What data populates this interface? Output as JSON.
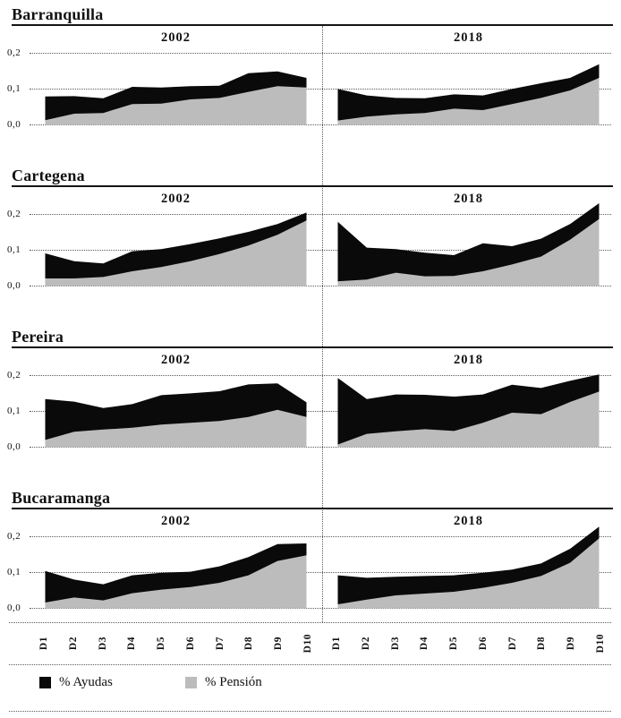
{
  "colors": {
    "ayudas": "#0a0a0a",
    "pension": "#bcbcbc",
    "rule": "#141414",
    "dotted_lines": "#5a5a5a",
    "background": "#ffffff"
  },
  "y_axis": {
    "ticks": [
      "0,2",
      "0,1",
      "0,0"
    ]
  },
  "x_axis": {
    "labels": [
      "D1",
      "D2",
      "D3",
      "D4",
      "D5",
      "D6",
      "D7",
      "D8",
      "D9",
      "D10"
    ]
  },
  "legend": [
    {
      "label": "% Ayudas",
      "color_key": "ayudas"
    },
    {
      "label": "% Pensión",
      "color_key": "pension"
    }
  ],
  "cities": [
    {
      "name": "Barranquilla",
      "panels": [
        "2002",
        "2018"
      ]
    },
    {
      "name": "Cartegena",
      "panels": [
        "2002",
        "2018"
      ]
    },
    {
      "name": "Pereira",
      "panels": [
        "2002",
        "2018"
      ]
    },
    {
      "name": "Bucaramanga",
      "panels": [
        "2002",
        "2018"
      ]
    }
  ],
  "chart_data": [
    {
      "type": "area",
      "stacked": true,
      "city": "Barranquilla",
      "panel_title": "2002",
      "x": [
        "D1",
        "D2",
        "D3",
        "D4",
        "D5",
        "D6",
        "D7",
        "D8",
        "D9",
        "D10"
      ],
      "series": [
        {
          "name": "% Pensión",
          "values": [
            0.012,
            0.03,
            0.032,
            0.057,
            0.058,
            0.07,
            0.074,
            0.091,
            0.107,
            0.103
          ]
        },
        {
          "name": "% Ayudas",
          "values": [
            0.066,
            0.049,
            0.041,
            0.048,
            0.045,
            0.037,
            0.034,
            0.052,
            0.041,
            0.027
          ]
        }
      ],
      "ylim": [
        0,
        0.25
      ],
      "yticks": [
        "0,0",
        "0,1",
        "0,2"
      ],
      "grid": "horizontal-dotted",
      "legend_position": "figure-bottom"
    },
    {
      "type": "area",
      "stacked": true,
      "city": "Barranquilla",
      "panel_title": "2018",
      "x": [
        "D1",
        "D2",
        "D3",
        "D4",
        "D5",
        "D6",
        "D7",
        "D8",
        "D9",
        "D10"
      ],
      "series": [
        {
          "name": "% Pensión",
          "values": [
            0.011,
            0.022,
            0.028,
            0.032,
            0.044,
            0.04,
            0.057,
            0.074,
            0.095,
            0.13
          ]
        },
        {
          "name": "% Ayudas",
          "values": [
            0.088,
            0.059,
            0.046,
            0.041,
            0.04,
            0.041,
            0.042,
            0.041,
            0.035,
            0.038
          ]
        }
      ],
      "ylim": [
        0,
        0.25
      ],
      "yticks": [
        "0,0",
        "0,1",
        "0,2"
      ],
      "grid": "horizontal-dotted",
      "legend_position": "figure-bottom"
    },
    {
      "type": "area",
      "stacked": true,
      "city": "Cartegena",
      "panel_title": "2002",
      "x": [
        "D1",
        "D2",
        "D3",
        "D4",
        "D5",
        "D6",
        "D7",
        "D8",
        "D9",
        "D10"
      ],
      "series": [
        {
          "name": "% Pensión",
          "values": [
            0.02,
            0.02,
            0.024,
            0.04,
            0.052,
            0.068,
            0.088,
            0.112,
            0.142,
            0.182
          ]
        },
        {
          "name": "% Ayudas",
          "values": [
            0.07,
            0.048,
            0.038,
            0.056,
            0.05,
            0.048,
            0.044,
            0.038,
            0.03,
            0.022
          ]
        }
      ],
      "ylim": [
        0,
        0.25
      ],
      "yticks": [
        "0,0",
        "0,1",
        "0,2"
      ],
      "grid": "horizontal-dotted",
      "legend_position": "figure-bottom"
    },
    {
      "type": "area",
      "stacked": true,
      "city": "Cartegena",
      "panel_title": "2018",
      "x": [
        "D1",
        "D2",
        "D3",
        "D4",
        "D5",
        "D6",
        "D7",
        "D8",
        "D9",
        "D10"
      ],
      "series": [
        {
          "name": "% Pensión",
          "values": [
            0.012,
            0.017,
            0.036,
            0.026,
            0.027,
            0.04,
            0.059,
            0.081,
            0.128,
            0.186
          ]
        },
        {
          "name": "% Ayudas",
          "values": [
            0.166,
            0.089,
            0.066,
            0.066,
            0.058,
            0.078,
            0.051,
            0.05,
            0.044,
            0.044
          ]
        }
      ],
      "ylim": [
        0,
        0.25
      ],
      "yticks": [
        "0,0",
        "0,1",
        "0,2"
      ],
      "grid": "horizontal-dotted",
      "legend_position": "figure-bottom"
    },
    {
      "type": "area",
      "stacked": true,
      "city": "Pereira",
      "panel_title": "2002",
      "x": [
        "D1",
        "D2",
        "D3",
        "D4",
        "D5",
        "D6",
        "D7",
        "D8",
        "D9",
        "D10"
      ],
      "series": [
        {
          "name": "% Pensión",
          "values": [
            0.019,
            0.042,
            0.048,
            0.053,
            0.062,
            0.067,
            0.072,
            0.083,
            0.103,
            0.083
          ]
        },
        {
          "name": "% Ayudas",
          "values": [
            0.114,
            0.084,
            0.06,
            0.066,
            0.082,
            0.082,
            0.083,
            0.091,
            0.074,
            0.041
          ]
        }
      ],
      "ylim": [
        0,
        0.25
      ],
      "yticks": [
        "0,0",
        "0,1",
        "0,2"
      ],
      "grid": "horizontal-dotted",
      "legend_position": "figure-bottom"
    },
    {
      "type": "area",
      "stacked": true,
      "city": "Pereira",
      "panel_title": "2018",
      "x": [
        "D1",
        "D2",
        "D3",
        "D4",
        "D5",
        "D6",
        "D7",
        "D8",
        "D9",
        "D10"
      ],
      "series": [
        {
          "name": "% Pensión",
          "values": [
            0.006,
            0.036,
            0.043,
            0.049,
            0.044,
            0.067,
            0.095,
            0.091,
            0.125,
            0.154
          ]
        },
        {
          "name": "% Ayudas",
          "values": [
            0.186,
            0.097,
            0.103,
            0.096,
            0.096,
            0.079,
            0.078,
            0.073,
            0.059,
            0.048
          ]
        }
      ],
      "ylim": [
        0,
        0.25
      ],
      "yticks": [
        "0,0",
        "0,1",
        "0,2"
      ],
      "grid": "horizontal-dotted",
      "legend_position": "figure-bottom"
    },
    {
      "type": "area",
      "stacked": true,
      "city": "Bucaramanga",
      "panel_title": "2002",
      "x": [
        "D1",
        "D2",
        "D3",
        "D4",
        "D5",
        "D6",
        "D7",
        "D8",
        "D9",
        "D10"
      ],
      "series": [
        {
          "name": "% Pensión",
          "values": [
            0.015,
            0.029,
            0.021,
            0.041,
            0.051,
            0.058,
            0.07,
            0.091,
            0.131,
            0.147
          ]
        },
        {
          "name": "% Ayudas",
          "values": [
            0.088,
            0.05,
            0.045,
            0.05,
            0.047,
            0.043,
            0.046,
            0.051,
            0.047,
            0.033
          ]
        }
      ],
      "ylim": [
        0,
        0.25
      ],
      "yticks": [
        "0,0",
        "0,1",
        "0,2"
      ],
      "grid": "horizontal-dotted",
      "legend_position": "figure-bottom"
    },
    {
      "type": "area",
      "stacked": true,
      "city": "Bucaramanga",
      "panel_title": "2018",
      "x": [
        "D1",
        "D2",
        "D3",
        "D4",
        "D5",
        "D6",
        "D7",
        "D8",
        "D9",
        "D10"
      ],
      "series": [
        {
          "name": "% Pensión",
          "values": [
            0.01,
            0.023,
            0.035,
            0.04,
            0.045,
            0.056,
            0.07,
            0.089,
            0.126,
            0.194
          ]
        },
        {
          "name": "% Ayudas",
          "values": [
            0.081,
            0.061,
            0.052,
            0.049,
            0.046,
            0.042,
            0.037,
            0.035,
            0.039,
            0.033
          ]
        }
      ],
      "ylim": [
        0,
        0.25
      ],
      "yticks": [
        "0,0",
        "0,1",
        "0,2"
      ],
      "grid": "horizontal-dotted",
      "legend_position": "figure-bottom"
    }
  ]
}
